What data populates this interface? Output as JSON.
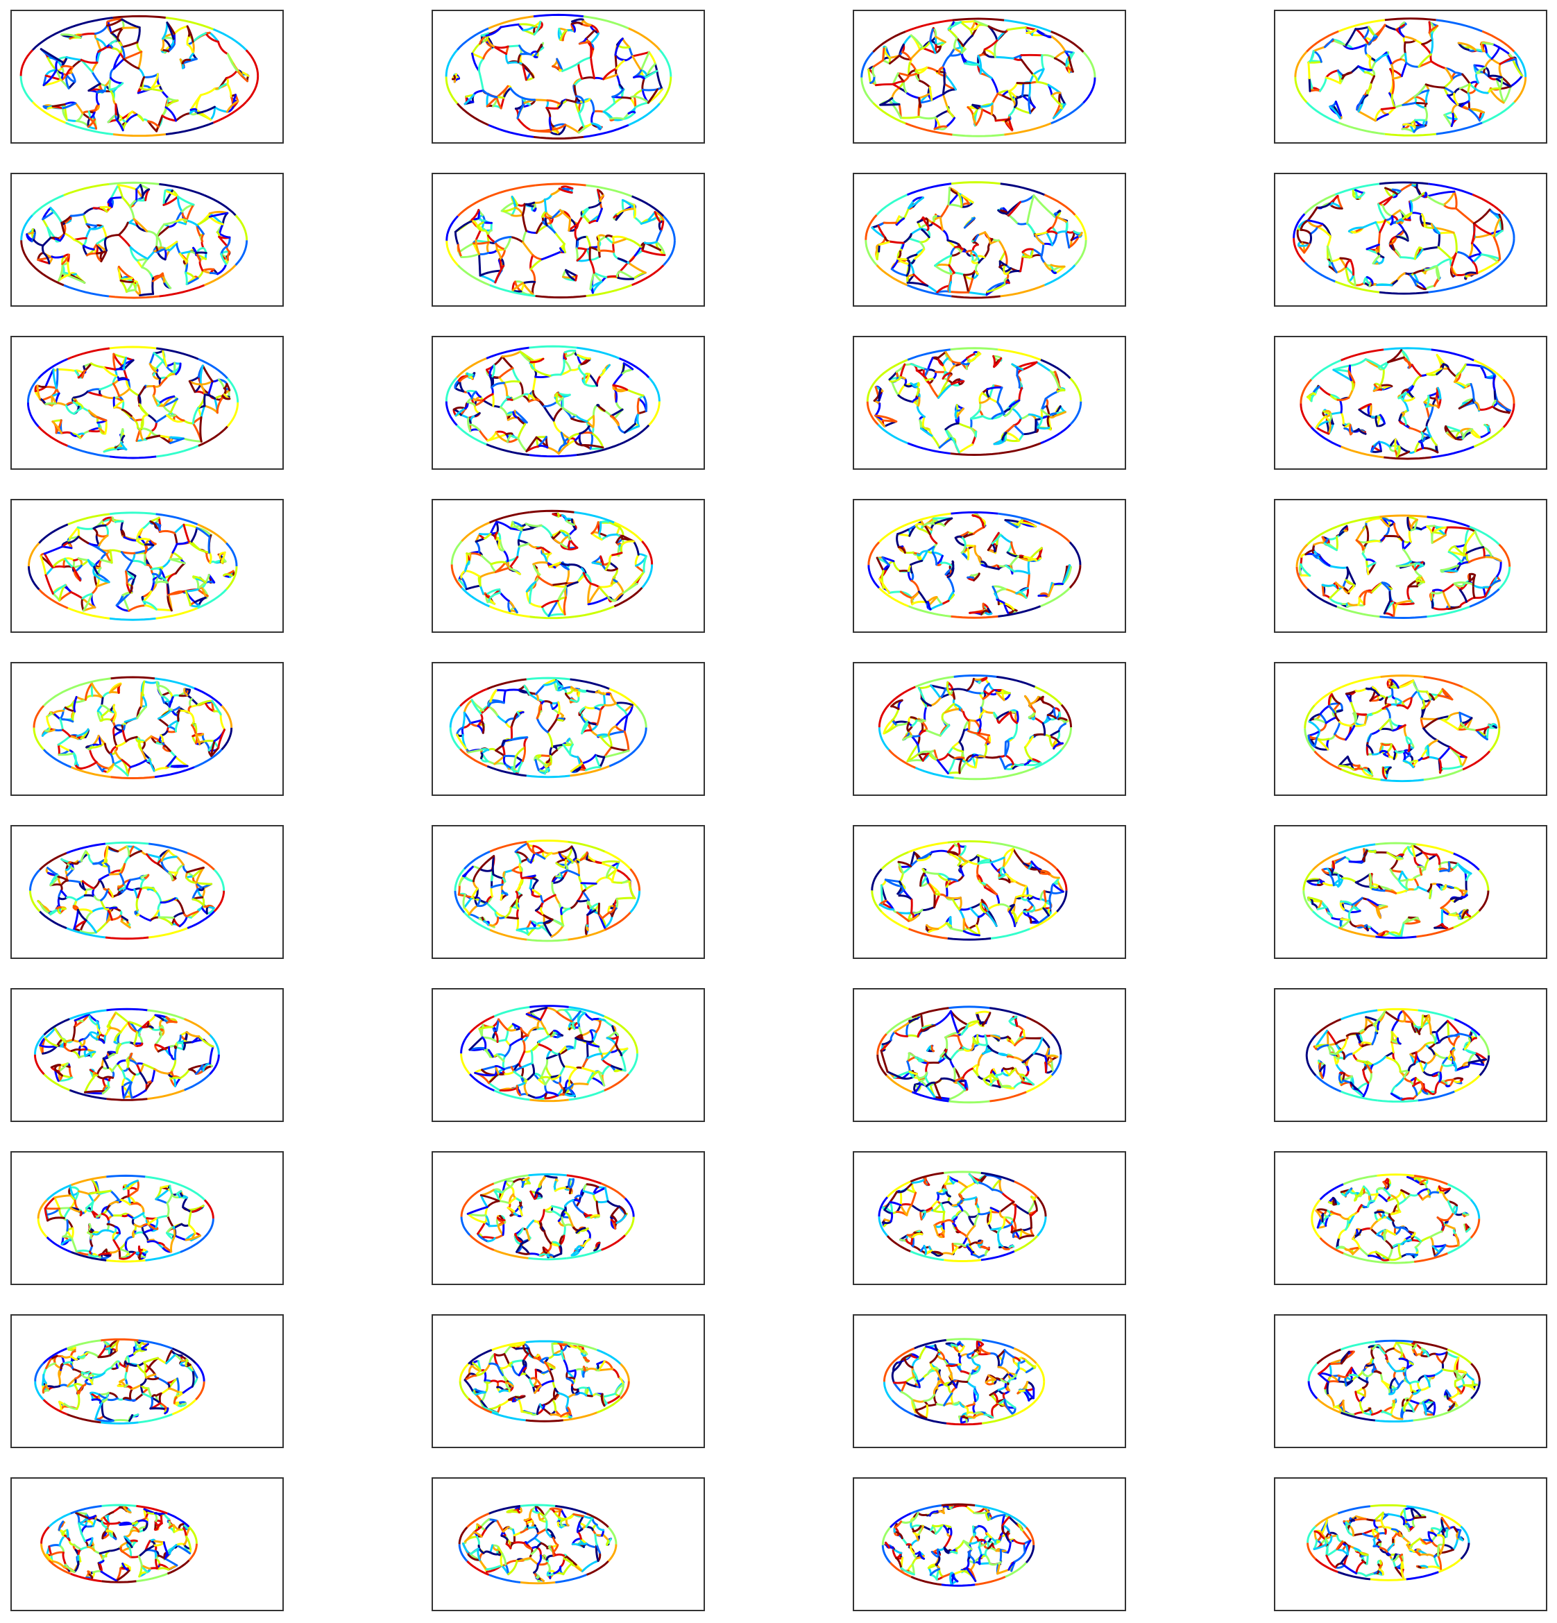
{
  "figure": {
    "rows": 10,
    "cols": 4,
    "colormap": [
      "#00007f",
      "#0000ff",
      "#0066ff",
      "#00ccff",
      "#33ffcc",
      "#99ff66",
      "#ccff00",
      "#ffff00",
      "#ffaa00",
      "#ff5500",
      "#e00000",
      "#7f0000"
    ],
    "panel_border_color": "#333333",
    "background_color": "#ffffff"
  }
}
